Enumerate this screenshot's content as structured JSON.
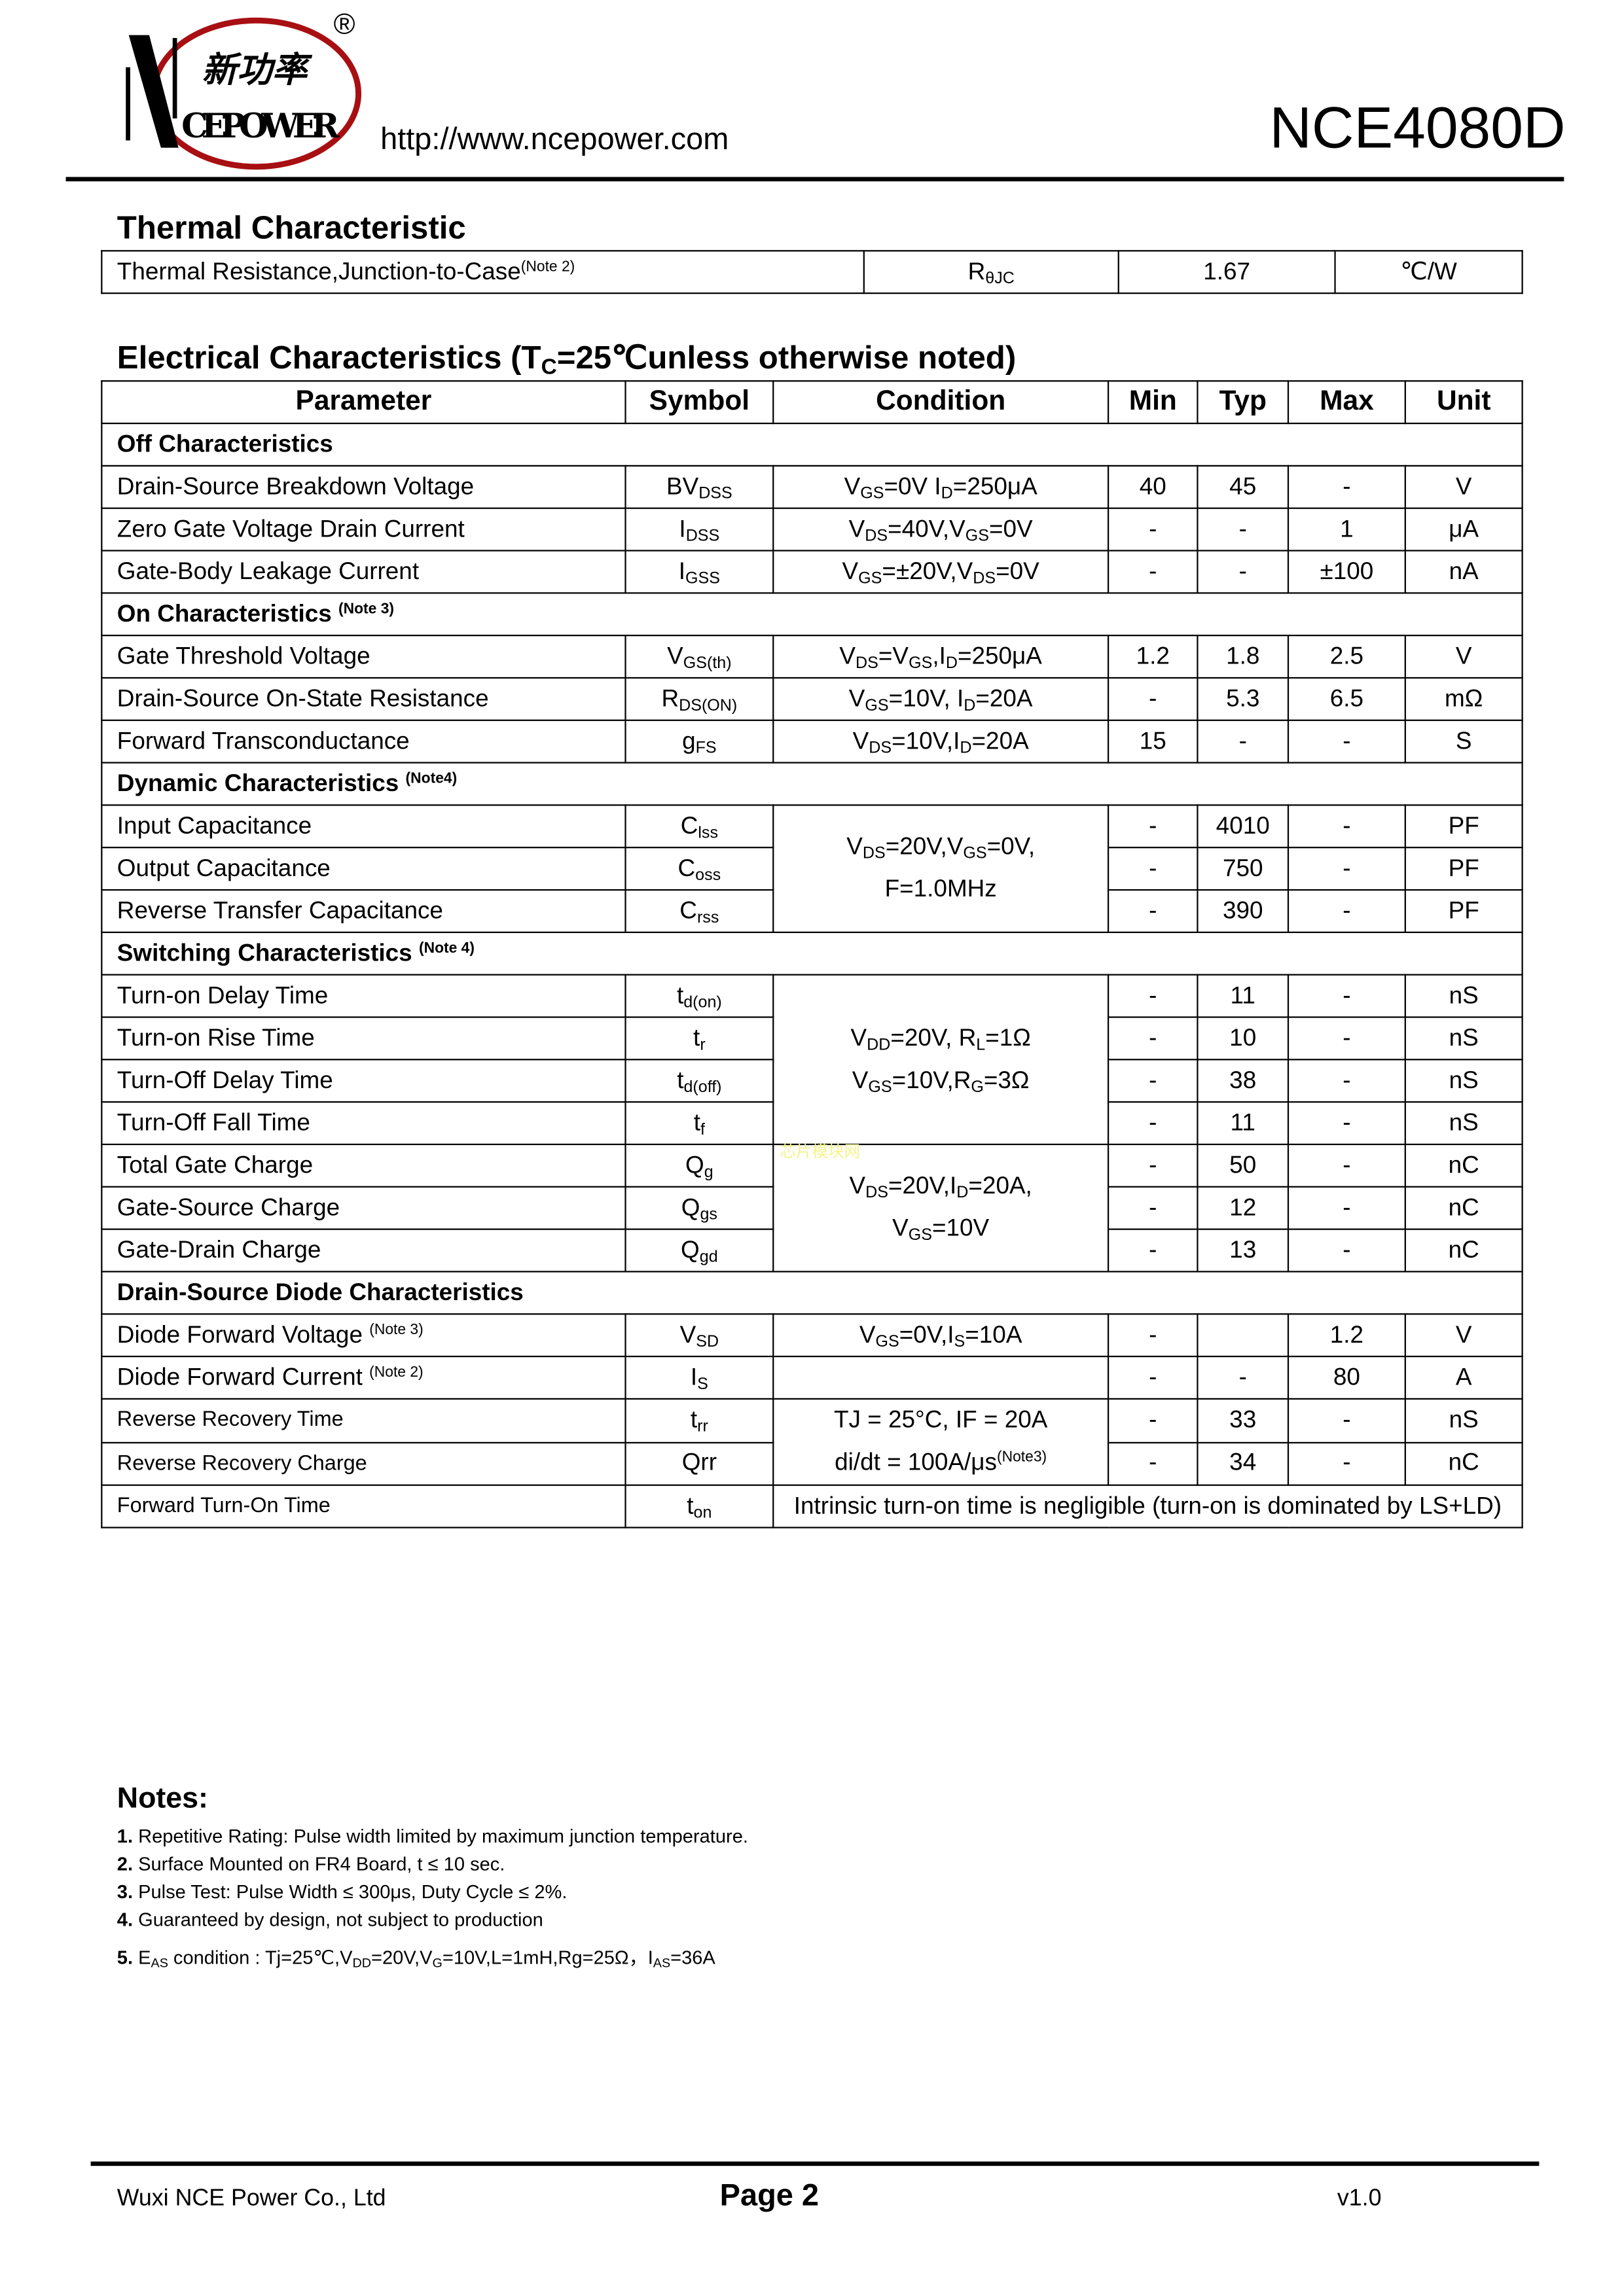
{
  "header": {
    "logo": {
      "brand_cn": "新功率",
      "brand_en": "CEPOWER",
      "registered_mark": "®",
      "colors": {
        "ring": "#a80f12",
        "mark": "#000000"
      }
    },
    "url": "http://www.ncepower.com",
    "part_number": "NCE4080D"
  },
  "thermal": {
    "title": "Thermal Characteristic",
    "row": {
      "param": "Thermal Resistance,Junction-to-Case^{(Note 2)}",
      "symbol": "R_{θJC}",
      "value": "1.67",
      "unit": "℃/W"
    }
  },
  "electrical": {
    "title": "Electrical Characteristics (T_{C}=25℃unless otherwise noted)",
    "columns": [
      "Parameter",
      "Symbol",
      "Condition",
      "Min",
      "Typ",
      "Max",
      "Unit"
    ],
    "rows": [
      {
        "section": "Off Characteristics"
      },
      {
        "param": "Drain-Source Breakdown Voltage",
        "symbol": "BV_{DSS}",
        "cond": "V_{GS}=0V I_{D}=250μA",
        "min": "40",
        "typ": "45",
        "max": "-",
        "unit": "V"
      },
      {
        "param": "Zero Gate Voltage Drain Current",
        "symbol": "I_{DSS}",
        "cond": "V_{DS}=40V,V_{GS}=0V",
        "min": "-",
        "typ": "-",
        "max": "1",
        "unit": "μA"
      },
      {
        "param": "Gate-Body Leakage Current",
        "symbol": "I_{GSS}",
        "cond": "V_{GS}=±20V,V_{DS}=0V",
        "min": "-",
        "typ": "-",
        "max": "±100",
        "unit": "nA"
      },
      {
        "section": "On Characteristics ^{(Note 3)}"
      },
      {
        "param": "Gate Threshold Voltage",
        "symbol": "V_{GS(th)}",
        "cond": "V_{DS}=V_{GS},I_{D}=250μA",
        "min": "1.2",
        "typ": "1.8",
        "max": "2.5",
        "unit": "V"
      },
      {
        "param": "Drain-Source On-State Resistance",
        "symbol": "R_{DS(ON)}",
        "cond": "V_{GS}=10V, I_{D}=20A",
        "min": "-",
        "typ": "5.3",
        "max": "6.5",
        "unit": "mΩ"
      },
      {
        "param": "Forward Transconductance",
        "symbol": "g_{FS}",
        "cond": "V_{DS}=10V,I_{D}=20A",
        "min": "15",
        "typ": "-",
        "max": "-",
        "unit": "S"
      },
      {
        "section": "Dynamic Characteristics ^{(Note4)}"
      },
      {
        "param": "Input Capacitance",
        "symbol": "C_{lss}",
        "cond": "V_{DS}=20V,V_{GS}=0V,|F=1.0MHz",
        "min": "-",
        "typ": "4010",
        "max": "-",
        "unit": "PF"
      },
      {
        "param": "Output Capacitance",
        "symbol": "C_{oss}",
        "cond": null,
        "min": "-",
        "typ": "750",
        "max": "-",
        "unit": "PF"
      },
      {
        "param": "Reverse Transfer Capacitance",
        "symbol": "C_{rss}",
        "cond": null,
        "min": "-",
        "typ": "390",
        "max": "-",
        "unit": "PF"
      },
      {
        "section": "Switching Characteristics ^{(Note 4)}"
      },
      {
        "param": "Turn-on Delay Time",
        "symbol": "t_{d(on)}",
        "cond": "V_{DD}=20V, R_{L}=1Ω|V_{GS}=10V,R_{G}=3Ω",
        "min": "-",
        "typ": "11",
        "max": "-",
        "unit": "nS"
      },
      {
        "param": "Turn-on Rise Time",
        "symbol": "t_{r}",
        "cond": null,
        "min": "-",
        "typ": "10",
        "max": "-",
        "unit": "nS"
      },
      {
        "param": "Turn-Off Delay Time",
        "symbol": "t_{d(off)}",
        "cond": null,
        "min": "-",
        "typ": "38",
        "max": "-",
        "unit": "nS"
      },
      {
        "param": "Turn-Off Fall Time",
        "symbol": "t_{f}",
        "cond": null,
        "min": "-",
        "typ": "11",
        "max": "-",
        "unit": "nS"
      },
      {
        "param": "Total Gate Charge",
        "symbol": "Q_{g}",
        "cond": "V_{DS}=20V,I_{D}=20A,|V_{GS}=10V",
        "min": "-",
        "typ": "50",
        "max": "-",
        "unit": "nC"
      },
      {
        "param": "Gate-Source Charge",
        "symbol": "Q_{gs}",
        "cond": null,
        "min": "-",
        "typ": "12",
        "max": "-",
        "unit": "nC"
      },
      {
        "param": "Gate-Drain Charge",
        "symbol": "Q_{gd}",
        "cond": null,
        "min": "-",
        "typ": "13",
        "max": "-",
        "unit": "nC"
      },
      {
        "section": "Drain-Source Diode Characteristics"
      },
      {
        "param": "Diode Forward Voltage ^{(Note 3)}",
        "symbol": "V_{SD}",
        "cond": "V_{GS}=0V,I_{S}=10A",
        "min": "-",
        "typ": "",
        "max": "1.2",
        "unit": "V"
      },
      {
        "param": "Diode Forward Current ^{(Note 2)}",
        "symbol": "I_{S}",
        "cond": "",
        "min": "-",
        "typ": "-",
        "max": "80",
        "unit": "A"
      },
      {
        "param": "Reverse Recovery Time",
        "small": true,
        "symbol": "t_{rr}",
        "cond": "TJ = 25°C, IF = 20A|di/dt = 100A/μs^{(Note3)}",
        "min": "-",
        "typ": "33",
        "max": "-",
        "unit": "nS"
      },
      {
        "param": "Reverse Recovery Charge",
        "small": true,
        "symbol": "Qrr",
        "cond": null,
        "min": "-",
        "typ": "34",
        "max": "-",
        "unit": "nC"
      },
      {
        "param": "Forward Turn-On Time",
        "small": true,
        "symbol": "t_{on}",
        "span_text": "Intrinsic turn-on time is negligible (turn-on is dominated by LS+LD)"
      }
    ]
  },
  "watermark": "芯片模块网",
  "notes": {
    "title": "Notes:",
    "items": [
      "**1.** Repetitive Rating: Pulse width limited by maximum junction temperature.",
      "**2.** Surface Mounted on FR4 Board, t ≤ 10 sec.",
      "**3.** Pulse Test: Pulse Width ≤ 300μs, Duty Cycle ≤ 2%.",
      "**4.** Guaranteed by design, not subject to production",
      "**5.** E_{AS} condition : Tj=25℃,V_{DD}=20V,V_{G}=10V,L=1mH,Rg=25Ω，I_{AS}=36A"
    ]
  },
  "footer": {
    "company": "Wuxi NCE Power Co., Ltd",
    "page": "Page 2",
    "version": "v1.0"
  }
}
